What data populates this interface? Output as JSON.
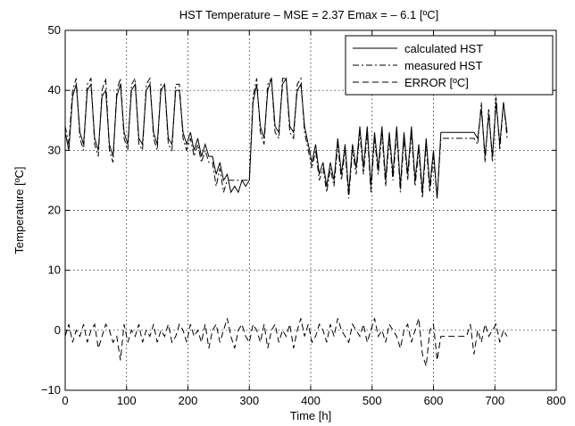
{
  "chart_data": {
    "type": "line",
    "title": "HST Temperature   –  MSE = 2.37    Emax = – 6.1 [ºC]",
    "xlabel": "Time [h]",
    "ylabel": "Temperature [ºC]",
    "xlim": [
      0,
      800
    ],
    "ylim": [
      -10,
      50
    ],
    "x_ticks": [
      0,
      100,
      200,
      300,
      400,
      500,
      600,
      700,
      800
    ],
    "y_ticks": [
      -10,
      0,
      10,
      20,
      30,
      40,
      50
    ],
    "x_tick_labels": [
      "0",
      "100",
      "200",
      "300",
      "400",
      "500",
      "600",
      "700",
      "800"
    ],
    "y_tick_labels": [
      "−10",
      "0",
      "10",
      "20",
      "30",
      "40",
      "50"
    ],
    "grid": true,
    "legend_position": "top-right",
    "series": [
      {
        "name": "calculated HST",
        "style": "solid",
        "color": "#000000",
        "x": [
          0,
          6,
          12,
          18,
          24,
          30,
          36,
          42,
          48,
          54,
          60,
          66,
          72,
          78,
          84,
          90,
          96,
          102,
          108,
          114,
          120,
          126,
          132,
          138,
          144,
          150,
          156,
          162,
          168,
          174,
          180,
          186,
          192,
          198,
          204,
          210,
          216,
          222,
          228,
          234,
          240,
          246,
          252,
          258,
          264,
          270,
          276,
          282,
          288,
          294,
          300,
          306,
          312,
          318,
          324,
          330,
          336,
          342,
          348,
          354,
          360,
          366,
          372,
          378,
          384,
          390,
          396,
          402,
          408,
          414,
          420,
          426,
          432,
          438,
          444,
          450,
          456,
          462,
          468,
          474,
          480,
          486,
          492,
          498,
          504,
          510,
          516,
          522,
          528,
          534,
          540,
          546,
          552,
          558,
          564,
          570,
          576,
          582,
          588,
          594,
          600,
          606,
          612,
          618,
          624,
          630,
          636,
          642,
          648,
          654,
          660,
          666,
          672,
          678,
          684,
          690,
          696,
          702,
          708,
          714,
          720
        ],
        "values": [
          33,
          30,
          39,
          41,
          33,
          31,
          40,
          41,
          32,
          30,
          39,
          40,
          31,
          29,
          39,
          41,
          33,
          31,
          40,
          41,
          32,
          31,
          40,
          41,
          33,
          31,
          40,
          41,
          32,
          31,
          40,
          40,
          33,
          31,
          33,
          30,
          32,
          29,
          31,
          29,
          29,
          26,
          28,
          25,
          26,
          23,
          24,
          23,
          25,
          24,
          25,
          38,
          41,
          34,
          32,
          40,
          42,
          34,
          33,
          41,
          42,
          34,
          33,
          40,
          41,
          34,
          31,
          28,
          31,
          26,
          28,
          24,
          28,
          25,
          32,
          26,
          31,
          23,
          31,
          27,
          34,
          27,
          34,
          24,
          33,
          27,
          34,
          25,
          33,
          26,
          34,
          24,
          33,
          26,
          34,
          25,
          31,
          23,
          32,
          24,
          30,
          22,
          33,
          33,
          33,
          33,
          33,
          33,
          33,
          33,
          33,
          33,
          32,
          37,
          29,
          36,
          29,
          38,
          31,
          38,
          33
        ]
      },
      {
        "name": "measured HST",
        "style": "dashdot",
        "color": "#000000",
        "x": [
          0,
          6,
          12,
          18,
          24,
          30,
          36,
          42,
          48,
          54,
          60,
          66,
          72,
          78,
          84,
          90,
          96,
          102,
          108,
          114,
          120,
          126,
          132,
          138,
          144,
          150,
          156,
          162,
          168,
          174,
          180,
          186,
          192,
          198,
          204,
          210,
          216,
          222,
          228,
          234,
          240,
          246,
          252,
          258,
          264,
          270,
          276,
          282,
          288,
          294,
          300,
          306,
          312,
          318,
          324,
          330,
          336,
          342,
          348,
          354,
          360,
          366,
          372,
          378,
          384,
          390,
          396,
          402,
          408,
          414,
          420,
          426,
          432,
          438,
          444,
          450,
          456,
          462,
          468,
          474,
          480,
          486,
          492,
          498,
          504,
          510,
          516,
          522,
          528,
          534,
          540,
          546,
          552,
          558,
          564,
          570,
          576,
          582,
          588,
          594,
          600,
          606,
          612,
          618,
          624,
          630,
          636,
          642,
          648,
          654,
          660,
          666,
          672,
          678,
          684,
          690,
          696,
          702,
          708,
          714,
          720
        ],
        "values": [
          34,
          31,
          40,
          42,
          32,
          30,
          41,
          42,
          31,
          29,
          40,
          42,
          30,
          28,
          40,
          42,
          32,
          30,
          41,
          42,
          31,
          30,
          41,
          42,
          32,
          30,
          41,
          41,
          31,
          30,
          41,
          41,
          32,
          30,
          32,
          29,
          31,
          28,
          30,
          28,
          28,
          24,
          27,
          23,
          25,
          25,
          25,
          25,
          25,
          25,
          25,
          39,
          42,
          33,
          31,
          41,
          42,
          33,
          32,
          42,
          42,
          33,
          32,
          41,
          42,
          33,
          30,
          27,
          30,
          25,
          27,
          23,
          27,
          24,
          31,
          25,
          30,
          22,
          30,
          26,
          33,
          26,
          33,
          23,
          32,
          26,
          33,
          24,
          32,
          25,
          33,
          23,
          32,
          25,
          33,
          24,
          30,
          22,
          31,
          23,
          29,
          22,
          32,
          32,
          32,
          32,
          32,
          32,
          32,
          32,
          32,
          32,
          31,
          38,
          28,
          37,
          28,
          39,
          30,
          38,
          32
        ]
      },
      {
        "name": "ERROR [ºC]",
        "style": "dashed",
        "color": "#000000",
        "x": [
          0,
          6,
          12,
          18,
          24,
          30,
          36,
          42,
          48,
          54,
          60,
          66,
          72,
          78,
          84,
          90,
          96,
          102,
          108,
          114,
          120,
          126,
          132,
          138,
          144,
          150,
          156,
          162,
          168,
          174,
          180,
          186,
          192,
          198,
          204,
          210,
          216,
          222,
          228,
          234,
          240,
          246,
          252,
          258,
          264,
          270,
          276,
          282,
          288,
          294,
          300,
          306,
          312,
          318,
          324,
          330,
          336,
          342,
          348,
          354,
          360,
          366,
          372,
          378,
          384,
          390,
          396,
          402,
          408,
          414,
          420,
          426,
          432,
          438,
          444,
          450,
          456,
          462,
          468,
          474,
          480,
          486,
          492,
          498,
          504,
          510,
          516,
          522,
          528,
          534,
          540,
          546,
          552,
          558,
          564,
          570,
          576,
          582,
          588,
          594,
          600,
          606,
          612,
          618,
          624,
          630,
          636,
          642,
          648,
          654,
          660,
          666,
          672,
          678,
          684,
          690,
          696,
          702,
          708,
          714,
          720
        ],
        "values": [
          -1,
          1,
          -2,
          0,
          -1,
          1,
          -2,
          0,
          1,
          -3,
          -1,
          1,
          0,
          -2,
          -1,
          -5,
          1,
          -2,
          0,
          -1,
          1,
          -2,
          0,
          -1,
          1,
          -2,
          0,
          -1,
          1,
          -2,
          -1,
          1,
          0,
          -2,
          1,
          -1,
          0,
          -2,
          1,
          -3,
          0,
          1,
          -2,
          0,
          2,
          -1,
          -3,
          0,
          1,
          -1,
          -2,
          1,
          0,
          -2,
          1,
          -3,
          0,
          1,
          -2,
          0,
          -1,
          1,
          -3,
          0,
          2,
          -1,
          1,
          -2,
          -1,
          1,
          0,
          -2,
          1,
          -1,
          2,
          0,
          -1,
          -2,
          1,
          0,
          -1,
          1,
          -2,
          0,
          2,
          -1,
          0,
          -2,
          1,
          0,
          -1,
          -3,
          0,
          1,
          -2,
          0,
          2,
          -4,
          -6,
          0,
          1,
          -5,
          -1,
          -1,
          -1,
          -1,
          -1,
          -1,
          -1,
          -1,
          1,
          -4,
          0,
          -2,
          1,
          -1,
          0,
          1,
          -2,
          0,
          -1
        ]
      }
    ]
  }
}
